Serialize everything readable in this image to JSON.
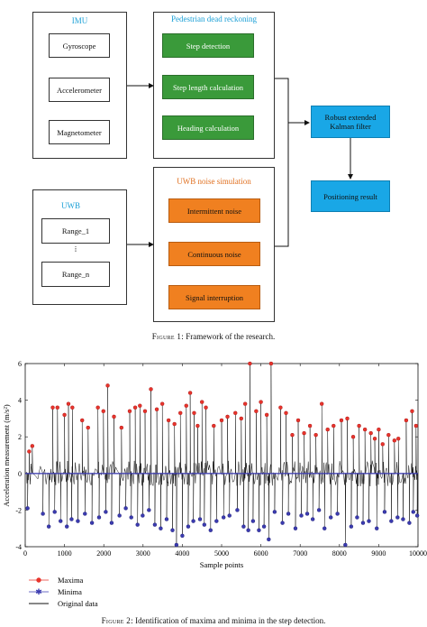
{
  "figure1": {
    "imu": {
      "title": "IMU",
      "items": [
        "Gyroscope",
        "Accelerometer",
        "Magnetometer"
      ]
    },
    "pdr": {
      "title": "Pedestrian dead reckoning",
      "items": [
        "Step detection",
        "Step length calculation",
        "Heading calculation"
      ]
    },
    "uwb": {
      "title": "UWB",
      "items": [
        "Range_1",
        "⁞",
        "Range_n"
      ]
    },
    "noise": {
      "title": "UWB noise simulation",
      "items": [
        "Intermittent noise",
        "Continuous noise",
        "Signal interruption"
      ]
    },
    "filter": "Robust extended Kalman filter",
    "result": "Positioning result",
    "caption_label": "Figure 1:",
    "caption_text": "Framework of the research."
  },
  "figure2": {
    "caption_label": "Figure 2:",
    "caption_text": "Identification of maxima and minima in the step detection."
  },
  "colors": {
    "green": "#3a9a3a",
    "orange": "#f08020",
    "blue": "#19a7e6",
    "maxima": "#e8342c",
    "minima": "#3b3bb0",
    "signal": "#111111"
  },
  "chart_data": {
    "type": "line",
    "xlabel": "Sample points",
    "ylabel": "Acceleration measurement (m/s²)",
    "xlim": [
      0,
      10000
    ],
    "ylim": [
      -4,
      6
    ],
    "xticks": [
      0,
      1000,
      2000,
      3000,
      4000,
      5000,
      6000,
      7000,
      8000,
      9000,
      10000
    ],
    "yticks": [
      -4,
      -2,
      0,
      2,
      4,
      6
    ],
    "legend_position": "bottom-left, below plot",
    "series": [
      {
        "name": "Maxima",
        "marker": "circle",
        "color": "#e8342c",
        "points": [
          [
            100,
            1.2
          ],
          [
            180,
            1.5
          ],
          [
            700,
            3.6
          ],
          [
            820,
            3.6
          ],
          [
            1000,
            3.2
          ],
          [
            1100,
            3.8
          ],
          [
            1200,
            3.6
          ],
          [
            1450,
            2.9
          ],
          [
            1600,
            2.5
          ],
          [
            1850,
            3.6
          ],
          [
            1990,
            3.4
          ],
          [
            2100,
            4.8
          ],
          [
            2260,
            3.1
          ],
          [
            2450,
            2.5
          ],
          [
            2660,
            3.4
          ],
          [
            2800,
            3.6
          ],
          [
            2920,
            3.7
          ],
          [
            3050,
            3.4
          ],
          [
            3200,
            4.6
          ],
          [
            3350,
            3.5
          ],
          [
            3490,
            3.8
          ],
          [
            3650,
            2.9
          ],
          [
            3800,
            2.7
          ],
          [
            3950,
            3.3
          ],
          [
            4100,
            3.7
          ],
          [
            4200,
            4.4
          ],
          [
            4300,
            3.3
          ],
          [
            4390,
            2.6
          ],
          [
            4500,
            3.9
          ],
          [
            4600,
            3.6
          ],
          [
            4800,
            2.6
          ],
          [
            5000,
            2.9
          ],
          [
            5150,
            3.1
          ],
          [
            5350,
            3.3
          ],
          [
            5500,
            3.0
          ],
          [
            5600,
            3.8
          ],
          [
            5720,
            6.0
          ],
          [
            5880,
            3.4
          ],
          [
            6000,
            3.9
          ],
          [
            6150,
            3.2
          ],
          [
            6260,
            6.0
          ],
          [
            6500,
            3.6
          ],
          [
            6640,
            3.3
          ],
          [
            6800,
            2.1
          ],
          [
            6950,
            2.9
          ],
          [
            7100,
            2.2
          ],
          [
            7250,
            2.6
          ],
          [
            7400,
            2.1
          ],
          [
            7550,
            3.8
          ],
          [
            7700,
            2.4
          ],
          [
            7850,
            2.6
          ],
          [
            8050,
            2.9
          ],
          [
            8200,
            3.0
          ],
          [
            8350,
            2.0
          ],
          [
            8500,
            2.6
          ],
          [
            8650,
            2.4
          ],
          [
            8800,
            2.2
          ],
          [
            8900,
            1.9
          ],
          [
            9000,
            2.4
          ],
          [
            9100,
            1.6
          ],
          [
            9250,
            2.1
          ],
          [
            9400,
            1.8
          ],
          [
            9500,
            1.9
          ],
          [
            9700,
            2.9
          ],
          [
            9850,
            3.4
          ],
          [
            9950,
            2.6
          ]
        ]
      },
      {
        "name": "Minima",
        "marker": "asterisk",
        "color": "#3b3bb0",
        "points": [
          [
            60,
            -1.9
          ],
          [
            450,
            -2.2
          ],
          [
            600,
            -2.9
          ],
          [
            750,
            -2.1
          ],
          [
            900,
            -2.6
          ],
          [
            1060,
            -2.9
          ],
          [
            1180,
            -2.5
          ],
          [
            1340,
            -2.6
          ],
          [
            1520,
            -2.2
          ],
          [
            1700,
            -2.7
          ],
          [
            1880,
            -2.4
          ],
          [
            2050,
            -2.1
          ],
          [
            2200,
            -2.7
          ],
          [
            2400,
            -2.3
          ],
          [
            2560,
            -1.9
          ],
          [
            2700,
            -2.4
          ],
          [
            2860,
            -2.8
          ],
          [
            2990,
            -2.3
          ],
          [
            3150,
            -2.0
          ],
          [
            3300,
            -2.8
          ],
          [
            3450,
            -3.0
          ],
          [
            3600,
            -2.5
          ],
          [
            3750,
            -3.1
          ],
          [
            3850,
            -3.9
          ],
          [
            4000,
            -3.4
          ],
          [
            4150,
            -2.9
          ],
          [
            4280,
            -2.6
          ],
          [
            4450,
            -2.5
          ],
          [
            4560,
            -2.8
          ],
          [
            4720,
            -3.1
          ],
          [
            4870,
            -2.6
          ],
          [
            5050,
            -2.4
          ],
          [
            5200,
            -2.3
          ],
          [
            5400,
            -2.0
          ],
          [
            5560,
            -2.9
          ],
          [
            5680,
            -3.1
          ],
          [
            5800,
            -2.6
          ],
          [
            5950,
            -3.1
          ],
          [
            6080,
            -2.9
          ],
          [
            6200,
            -3.6
          ],
          [
            6350,
            -2.1
          ],
          [
            6550,
            -2.7
          ],
          [
            6700,
            -2.2
          ],
          [
            6880,
            -3.0
          ],
          [
            7030,
            -2.3
          ],
          [
            7180,
            -2.2
          ],
          [
            7320,
            -2.5
          ],
          [
            7480,
            -2.0
          ],
          [
            7620,
            -3.0
          ],
          [
            7780,
            -2.4
          ],
          [
            7950,
            -2.2
          ],
          [
            8150,
            -3.9
          ],
          [
            8300,
            -2.9
          ],
          [
            8450,
            -2.4
          ],
          [
            8600,
            -2.7
          ],
          [
            8750,
            -2.6
          ],
          [
            8950,
            -3.0
          ],
          [
            9150,
            -2.1
          ],
          [
            9320,
            -2.6
          ],
          [
            9480,
            -2.4
          ],
          [
            9620,
            -2.5
          ],
          [
            9780,
            -2.7
          ],
          [
            9880,
            -2.1
          ],
          [
            9980,
            -2.3
          ]
        ]
      },
      {
        "name": "Original data",
        "marker": "line",
        "color": "#111111"
      }
    ]
  }
}
